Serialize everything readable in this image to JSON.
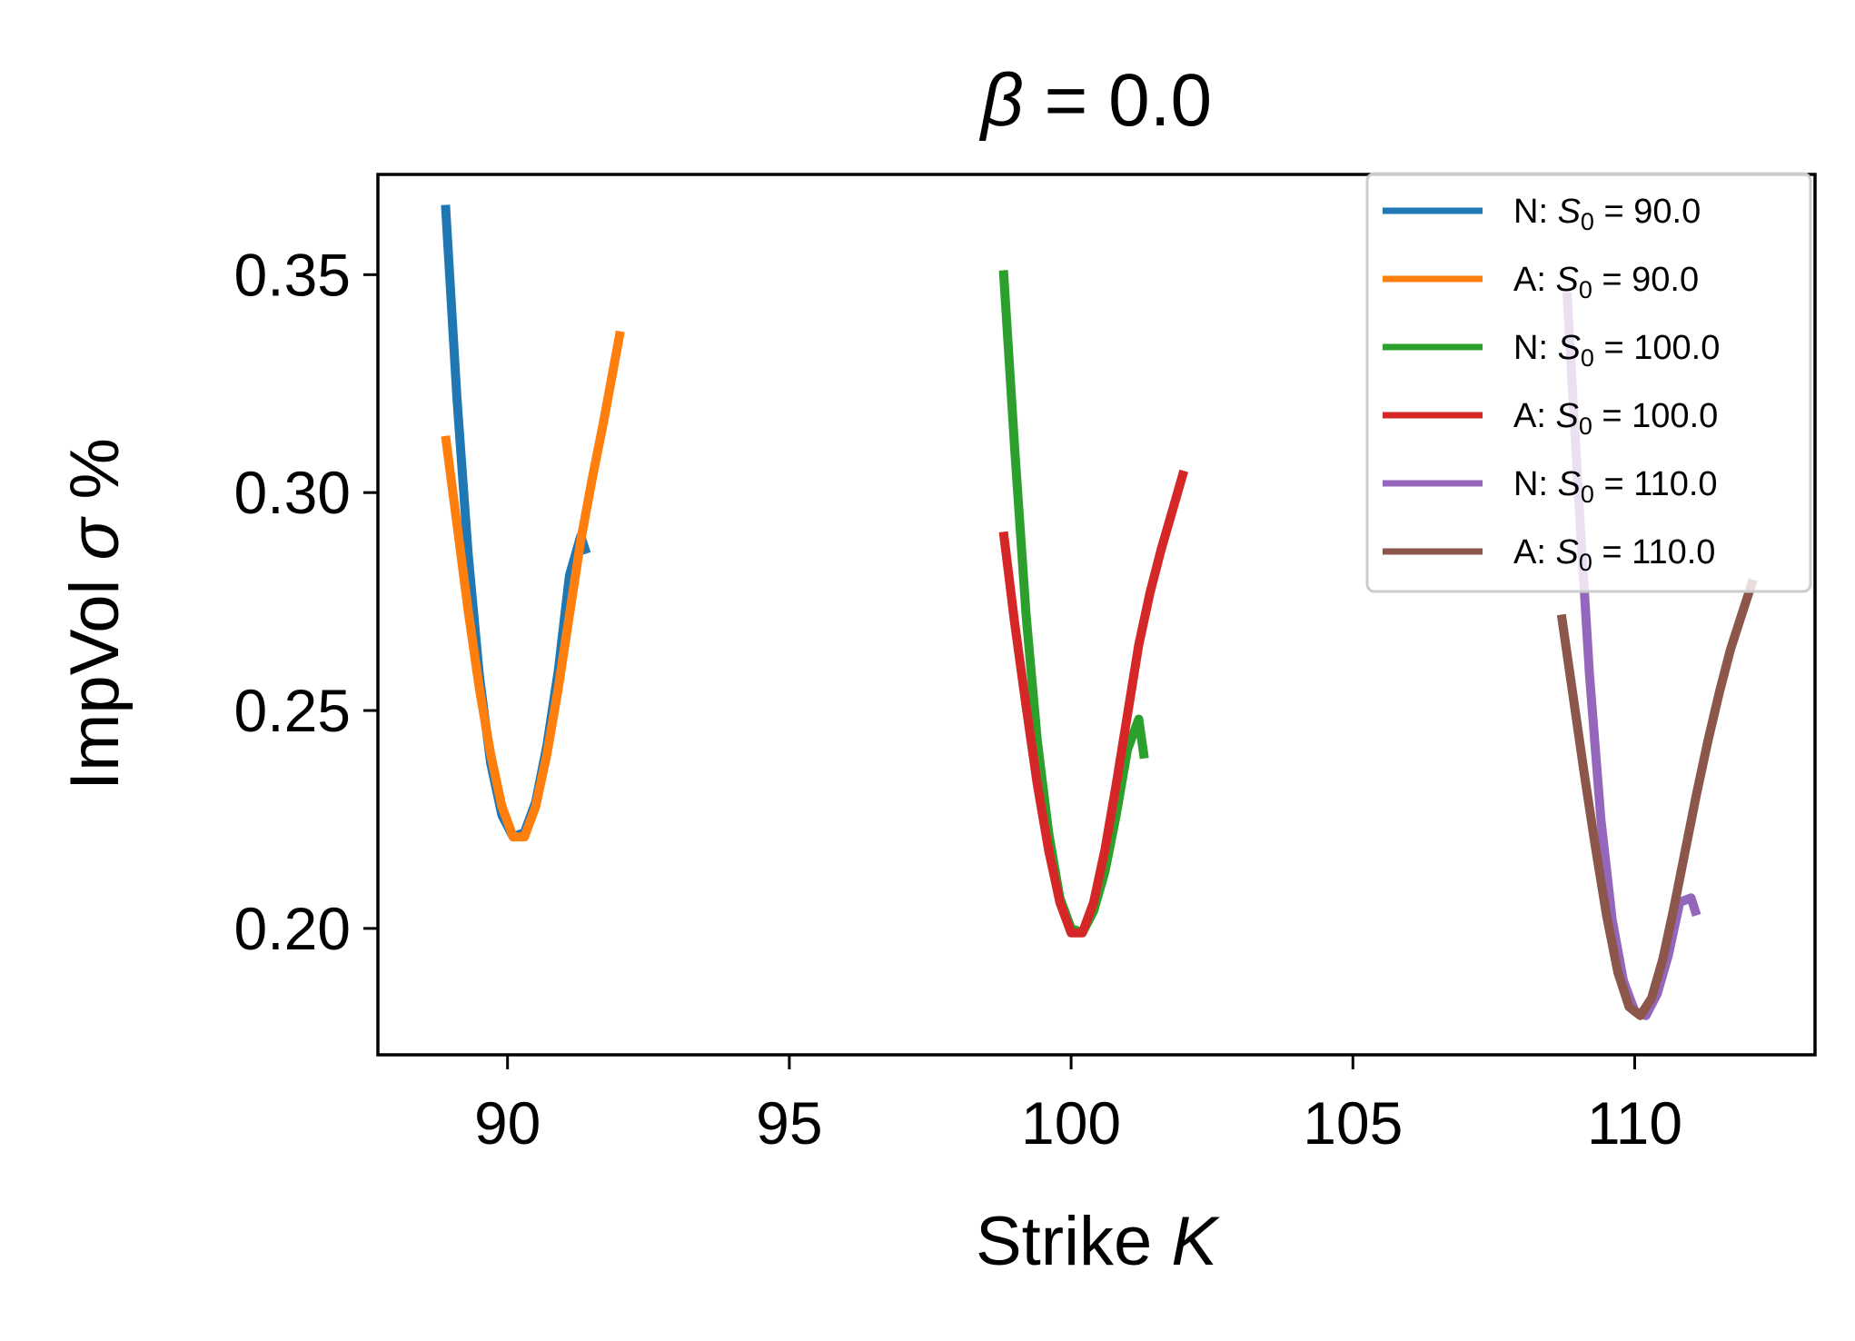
{
  "chart_data": {
    "type": "line",
    "title": "β = 0.0",
    "title_parts": {
      "symbol": "β",
      "rest": " = 0.0"
    },
    "xlabel": "Strike K",
    "xlabel_parts": {
      "text": "Strike ",
      "symbol": "K"
    },
    "ylabel": "ImpVol σ %",
    "ylabel_parts": {
      "before": "ImpVol ",
      "symbol": "σ",
      "after": " %"
    },
    "xlim": [
      87.7,
      113.2
    ],
    "ylim": [
      0.171,
      0.373
    ],
    "xticks": [
      90,
      95,
      100,
      105,
      110
    ],
    "xtick_labels": [
      "90",
      "95",
      "100",
      "105",
      "110"
    ],
    "yticks": [
      0.2,
      0.25,
      0.3,
      0.35
    ],
    "ytick_labels": [
      "0.20",
      "0.25",
      "0.30",
      "0.35"
    ],
    "grid": false,
    "legend_position": "top-right",
    "series": [
      {
        "name": "N: S0 = 90.0",
        "legend_prefix": "N: ",
        "legend_sub": "0",
        "legend_value": " = 90.0",
        "color": "#1f77b4",
        "x": [
          88.9,
          89.1,
          89.3,
          89.5,
          89.7,
          89.9,
          90.1,
          90.3,
          90.5,
          90.7,
          90.9,
          91.1,
          91.3,
          91.4
        ],
        "y": [
          0.366,
          0.322,
          0.286,
          0.258,
          0.238,
          0.226,
          0.221,
          0.222,
          0.229,
          0.242,
          0.259,
          0.281,
          0.29,
          0.286
        ]
      },
      {
        "name": "A: S0 = 90.0",
        "legend_prefix": "A: ",
        "legend_sub": "0",
        "legend_value": " = 90.0",
        "color": "#ff7f0e",
        "x": [
          88.9,
          89.1,
          89.3,
          89.5,
          89.7,
          89.9,
          90.1,
          90.3,
          90.5,
          90.7,
          90.9,
          91.1,
          91.3,
          91.5,
          91.7,
          91.9,
          92.0
        ],
        "y": [
          0.313,
          0.293,
          0.273,
          0.255,
          0.24,
          0.228,
          0.221,
          0.221,
          0.228,
          0.24,
          0.255,
          0.272,
          0.289,
          0.303,
          0.316,
          0.33,
          0.337
        ]
      },
      {
        "name": "N: S0 = 100.0",
        "legend_prefix": "N: ",
        "legend_sub": "0",
        "legend_value": " = 100.0",
        "color": "#2ca02c",
        "x": [
          98.8,
          99.0,
          99.2,
          99.4,
          99.6,
          99.8,
          100.0,
          100.2,
          100.4,
          100.6,
          100.8,
          101.0,
          101.2,
          101.3
        ],
        "y": [
          0.351,
          0.31,
          0.272,
          0.243,
          0.222,
          0.207,
          0.2,
          0.199,
          0.204,
          0.213,
          0.226,
          0.241,
          0.248,
          0.239
        ]
      },
      {
        "name": "A: S0 = 100.0",
        "legend_prefix": "A: ",
        "legend_sub": "0",
        "legend_value": " = 100.0",
        "color": "#d62728",
        "x": [
          98.8,
          99.0,
          99.2,
          99.4,
          99.6,
          99.8,
          100.0,
          100.2,
          100.4,
          100.6,
          100.8,
          101.0,
          101.2,
          101.4,
          101.6,
          101.8,
          102.0
        ],
        "y": [
          0.291,
          0.27,
          0.251,
          0.233,
          0.218,
          0.206,
          0.199,
          0.199,
          0.206,
          0.218,
          0.233,
          0.249,
          0.265,
          0.277,
          0.287,
          0.296,
          0.305
        ]
      },
      {
        "name": "N: S0 = 110.0",
        "legend_prefix": "N: ",
        "legend_sub": "0",
        "legend_value": " = 110.0",
        "color": "#9467bd",
        "x": [
          108.8,
          109.0,
          109.2,
          109.4,
          109.6,
          109.8,
          110.0,
          110.2,
          110.4,
          110.6,
          110.8,
          111.0,
          111.1
        ],
        "y": [
          0.346,
          0.3,
          0.258,
          0.225,
          0.202,
          0.188,
          0.181,
          0.18,
          0.185,
          0.194,
          0.206,
          0.207,
          0.203
        ]
      },
      {
        "name": "A: S0 = 110.0",
        "legend_prefix": "A: ",
        "legend_sub": "0",
        "legend_value": " = 110.0",
        "color": "#8c564b",
        "x": [
          108.7,
          108.9,
          109.1,
          109.3,
          109.5,
          109.7,
          109.9,
          110.1,
          110.3,
          110.5,
          110.7,
          110.9,
          111.1,
          111.3,
          111.5,
          111.7,
          111.9,
          112.1
        ],
        "y": [
          0.272,
          0.254,
          0.236,
          0.219,
          0.203,
          0.19,
          0.182,
          0.18,
          0.184,
          0.193,
          0.205,
          0.218,
          0.231,
          0.243,
          0.254,
          0.264,
          0.272,
          0.28
        ]
      }
    ]
  }
}
